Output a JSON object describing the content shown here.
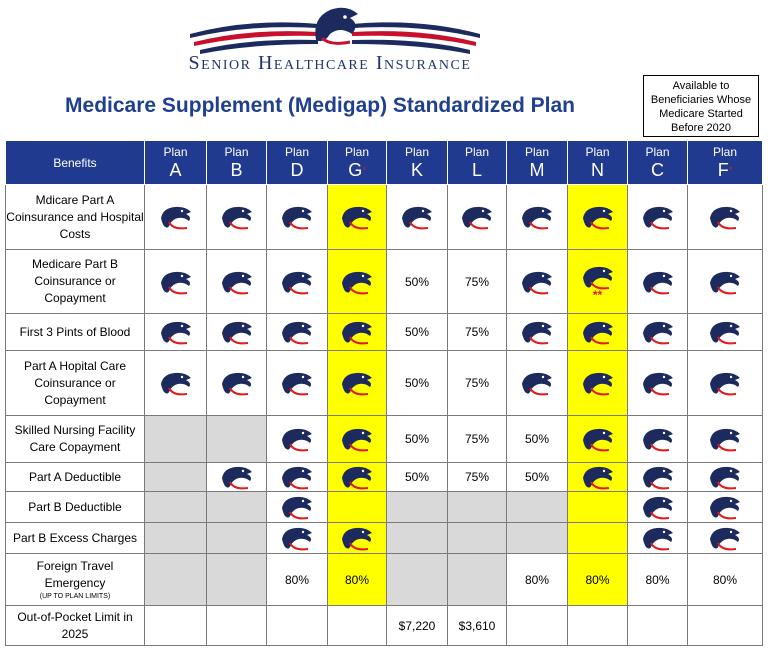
{
  "brand": "Senior Healthcare Insurance",
  "title": "Medicare Supplement (Medigap) Standardized Plan",
  "availability_note": [
    "Available to",
    "Beneficiaries Whose",
    "Medicare Started",
    "Before 2020"
  ],
  "colors": {
    "header_blue": "#1f3a8f",
    "highlight_yellow": "#ffff00",
    "unavailable_gray": "#d9d9d9",
    "eagle_navy": "#1c2a5e",
    "accent_red": "#e01b1b"
  },
  "table": {
    "benefits_header": "Benefits",
    "plan_word": "Plan",
    "plans": [
      {
        "letter": "A",
        "star": ""
      },
      {
        "letter": "B",
        "star": ""
      },
      {
        "letter": "D",
        "star": ""
      },
      {
        "letter": "G",
        "star": "*"
      },
      {
        "letter": "K",
        "star": ""
      },
      {
        "letter": "L",
        "star": ""
      },
      {
        "letter": "M",
        "star": ""
      },
      {
        "letter": "N",
        "star": ""
      },
      {
        "letter": "C",
        "star": ""
      },
      {
        "letter": "F",
        "star": "*"
      }
    ],
    "rows": [
      {
        "label": "Mdicare Part A Coinsurance and Hospital Costs"
      },
      {
        "label": "Medicare Part B Coinsurance or Copayment",
        "n_note": "**"
      },
      {
        "label": "First 3 Pints of Blood"
      },
      {
        "label": "Part A Hopital Care Coinsurance or Copayment"
      },
      {
        "label": "Skilled Nursing Facility Care Copayment"
      },
      {
        "label": "Part A Deductible"
      },
      {
        "label": "Part B Deductible"
      },
      {
        "label": "Part B Excess Charges"
      },
      {
        "label": "Foreign Travel Emergency",
        "sublabel": "(UP TO PLAN LIMITS)"
      },
      {
        "label": "Out-of-Pocket Limit in 2025"
      }
    ],
    "values": {
      "k_50": "50%",
      "l_75": "75%",
      "m_50": "50%",
      "travel_80": "80%",
      "oop_k": "$7,220",
      "oop_l": "$3,610"
    }
  }
}
